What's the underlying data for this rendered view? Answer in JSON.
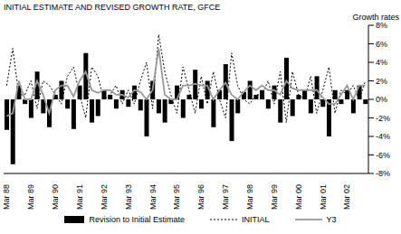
{
  "chart_data": {
    "type": "combo",
    "title": "INITIAL ESTIMATE AND REVISED GROWTH RATE, GFCE",
    "y_label": "Growth rates",
    "categories": [
      "Mar 88",
      null,
      null,
      null,
      "Mar 89",
      null,
      null,
      null,
      "Mar 90",
      null,
      null,
      null,
      "Mar 91",
      null,
      null,
      null,
      "Mar 92",
      null,
      null,
      null,
      "Mar 93",
      null,
      null,
      null,
      "Mar 94",
      null,
      null,
      null,
      "Mar 95",
      null,
      null,
      null,
      "Mar 96",
      null,
      null,
      null,
      "Mar 97",
      null,
      null,
      null,
      "Mar 98",
      null,
      null,
      null,
      "Mar 99",
      null,
      null,
      null,
      "Mar 00",
      null,
      null,
      null,
      "Mar 01",
      null,
      null,
      null,
      "Mar 02",
      null,
      null,
      null
    ],
    "series": [
      {
        "name": "Revision to Initial Estimate",
        "type": "bar",
        "color": "#000000",
        "values": [
          -3.3,
          -7.0,
          1.5,
          -0.5,
          -2.0,
          3.0,
          -1.5,
          -3.0,
          0.5,
          2.0,
          -1.0,
          -3.2,
          1.5,
          5.0,
          -2.5,
          -1.8,
          1.0,
          0.5,
          -1.0,
          1.0,
          -0.8,
          1.5,
          -1.2,
          -4.0,
          2.0,
          -1.5,
          -2.5,
          -0.5,
          1.5,
          -2.0,
          0.5,
          3.2,
          -1.0,
          2.0,
          -3.0,
          1.0,
          3.8,
          -4.5,
          -1.5,
          0.8,
          2.0,
          0.5,
          1.0,
          -1.0,
          1.5,
          -2.5,
          4.5,
          -1.8,
          0.5,
          1.0,
          -1.5,
          2.5,
          -0.8,
          -4.0,
          1.0,
          -0.5,
          1.0,
          -1.5,
          1.5,
          -0.5
        ]
      },
      {
        "name": "INITIAL",
        "type": "line",
        "line_style": "dotted",
        "color": "#000000",
        "values": [
          1.5,
          5.5,
          0.5,
          0.5,
          2.0,
          -1.0,
          2.0,
          1.5,
          0.5,
          -0.5,
          2.5,
          3.5,
          0.5,
          -2.0,
          3.5,
          2.5,
          0.0,
          0.5,
          1.5,
          -0.5,
          1.0,
          -0.5,
          2.0,
          4.0,
          -1.0,
          7.0,
          3.0,
          0.5,
          -1.5,
          3.5,
          1.0,
          -1.5,
          2.5,
          -0.5,
          3.0,
          0.0,
          -2.0,
          5.0,
          1.5,
          0.0,
          -0.5,
          0.5,
          0.5,
          2.0,
          -0.5,
          3.0,
          -2.5,
          3.0,
          0.5,
          0.0,
          2.5,
          -1.5,
          1.0,
          3.5,
          -1.5,
          1.0,
          0.5,
          1.5,
          0.0,
          2.0
        ]
      },
      {
        "name": "Y3",
        "type": "line",
        "line_style": "solid",
        "color": "#999999",
        "values": [
          -1.8,
          -1.5,
          2.0,
          0.0,
          0.0,
          2.0,
          0.5,
          -1.5,
          1.0,
          1.5,
          1.5,
          0.3,
          2.0,
          3.0,
          1.0,
          0.7,
          1.0,
          1.0,
          0.5,
          0.5,
          0.2,
          1.0,
          0.8,
          0.0,
          1.0,
          5.5,
          0.5,
          0.0,
          0.0,
          1.5,
          1.5,
          1.7,
          1.5,
          1.5,
          0.0,
          1.0,
          1.8,
          0.5,
          0.0,
          0.8,
          1.5,
          1.0,
          1.5,
          1.0,
          1.0,
          0.5,
          2.0,
          1.2,
          1.0,
          1.0,
          1.0,
          1.0,
          0.2,
          -0.5,
          -0.5,
          0.5,
          1.5,
          0.0,
          1.5,
          1.5
        ]
      }
    ],
    "ylim": [
      -8,
      8
    ],
    "yticks": [
      {
        "value": -8,
        "label": "-8%"
      },
      {
        "value": -6,
        "label": "-6%"
      },
      {
        "value": -4,
        "label": "-4%"
      },
      {
        "value": -2,
        "label": "-2%"
      },
      {
        "value": 0,
        "label": "0%"
      },
      {
        "value": 2,
        "label": "2%"
      },
      {
        "value": 4,
        "label": "4%"
      },
      {
        "value": 6,
        "label": "6%"
      },
      {
        "value": 8,
        "label": "8%"
      }
    ],
    "legend": "bottom",
    "grid": false
  }
}
